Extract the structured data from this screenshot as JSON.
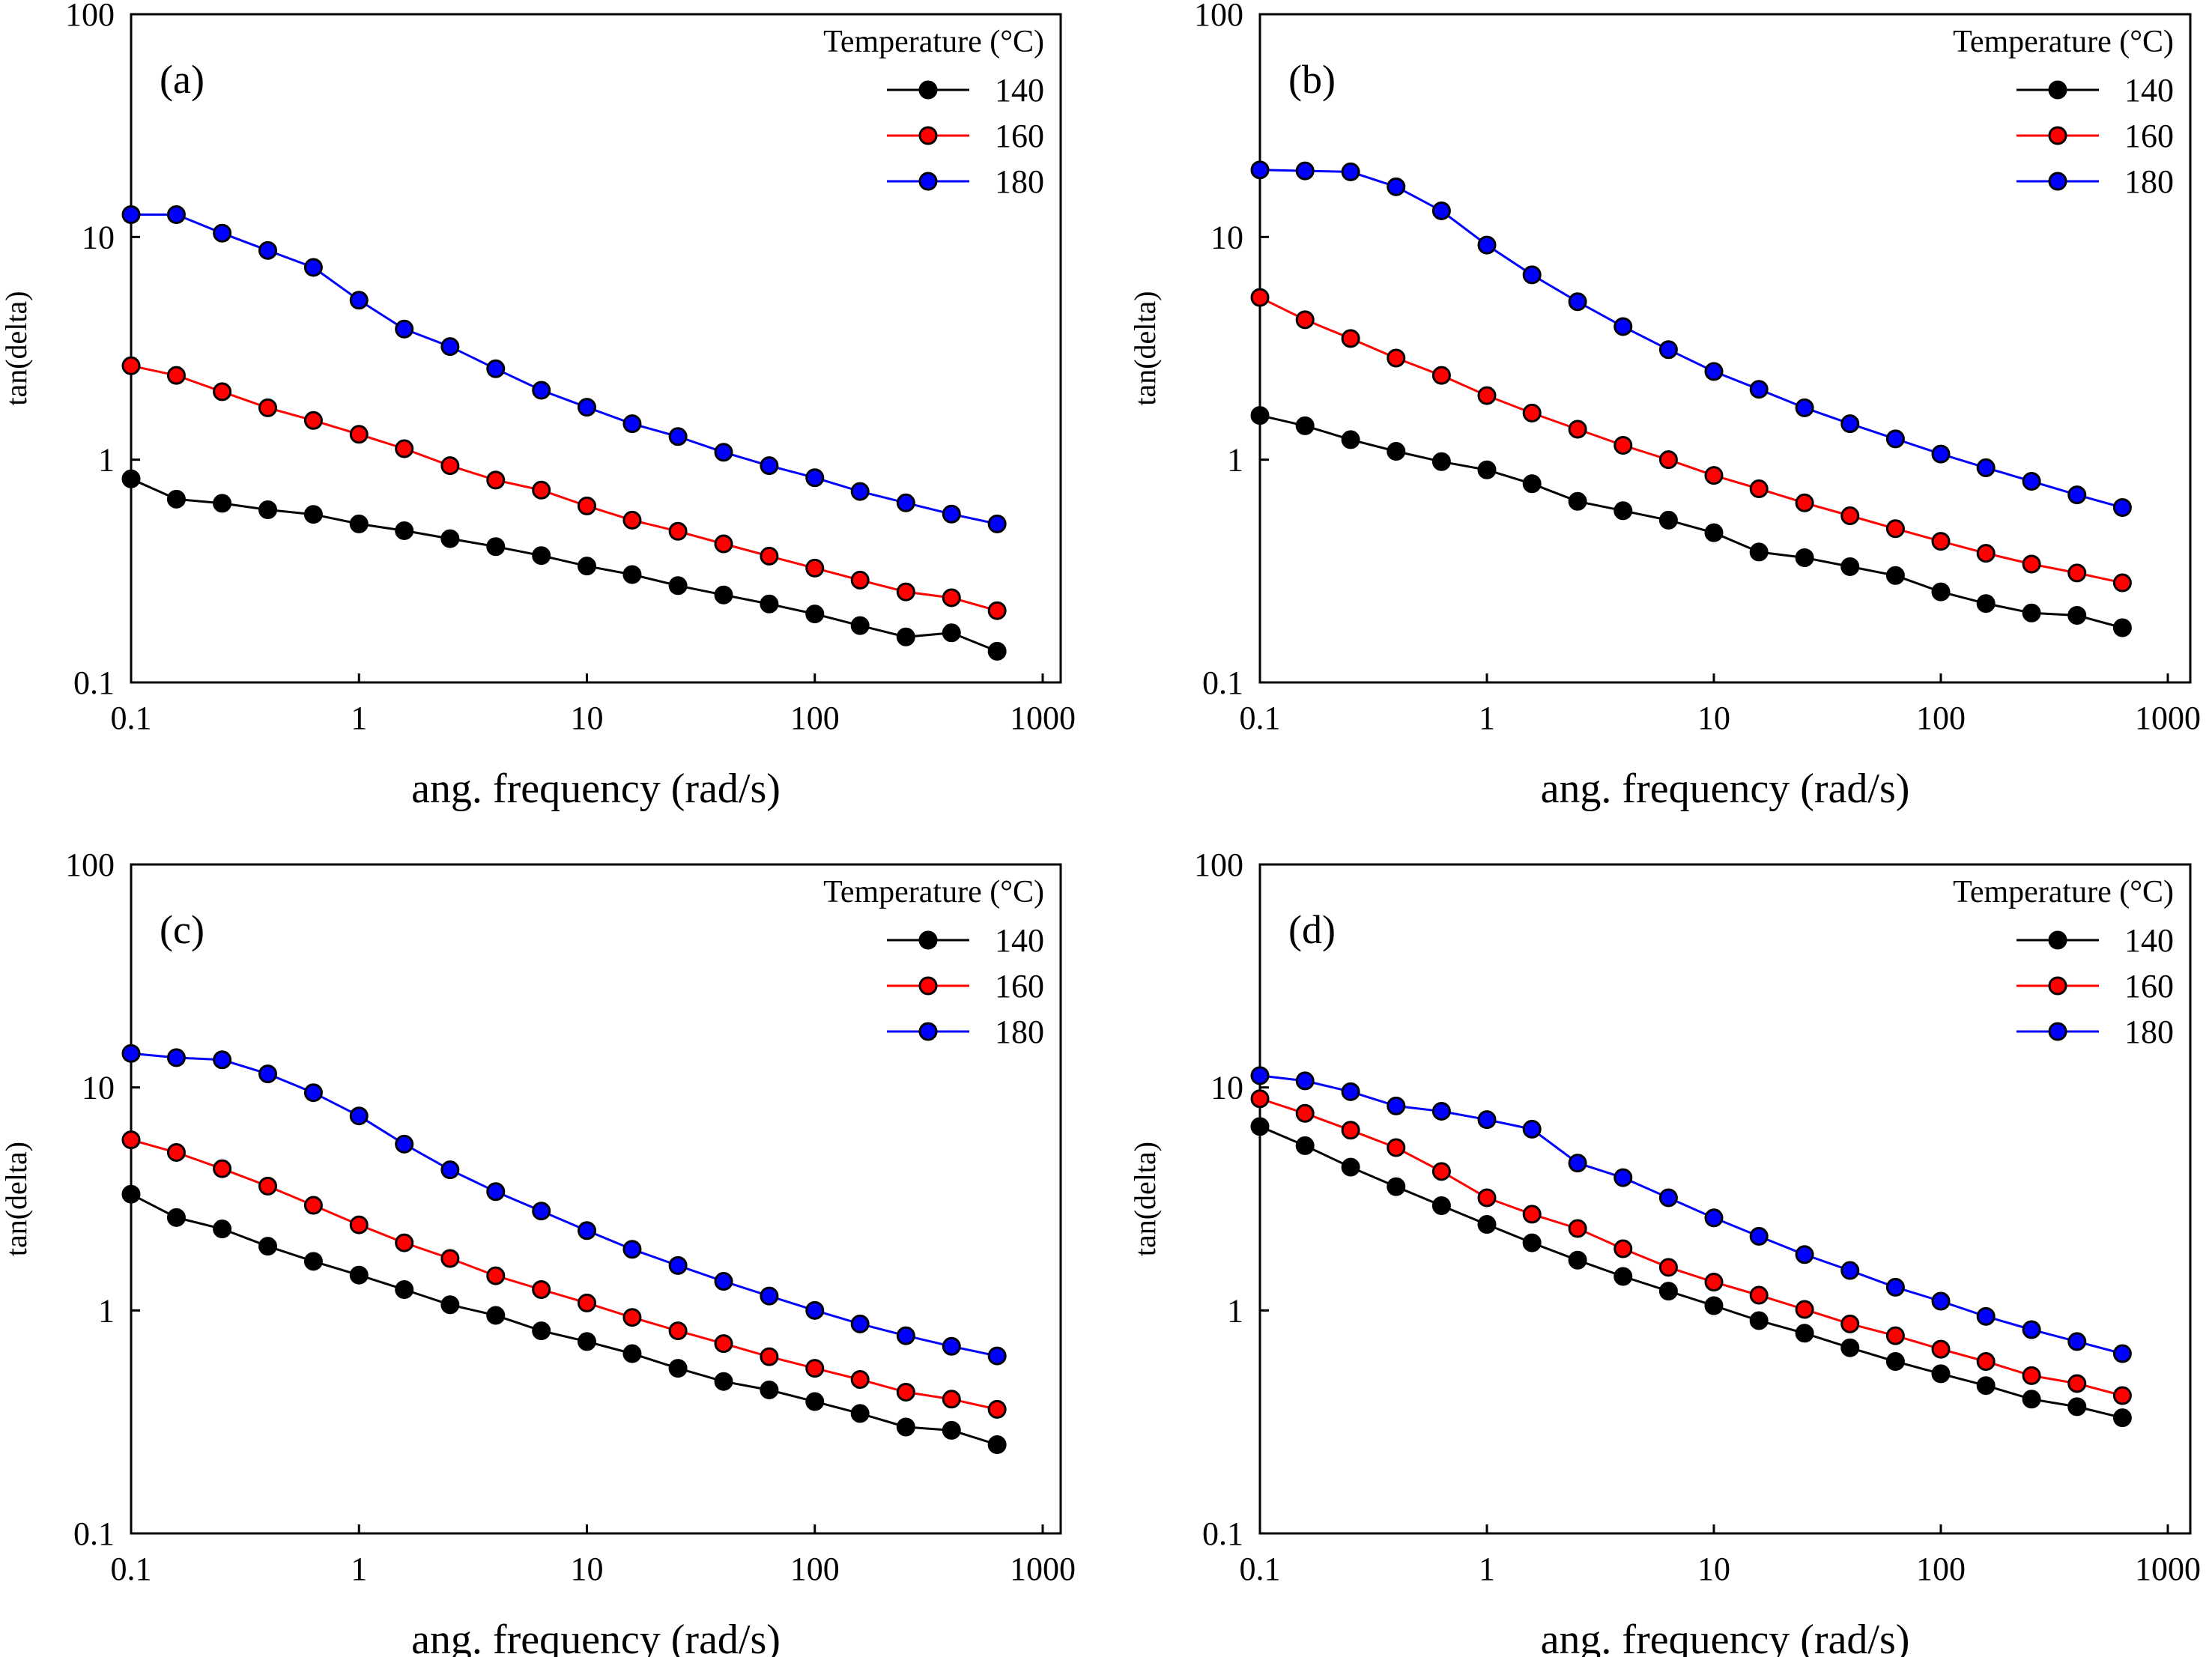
{
  "chart_data": [
    {
      "type": "line",
      "panel_label": "(a)",
      "title": "",
      "xlabel": "ang. frequency (rad/s)",
      "ylabel": "tan(delta)",
      "xscale": "log",
      "yscale": "log",
      "xlim": [
        0.1,
        1000
      ],
      "ylim": [
        0.1,
        100
      ],
      "xticks": [
        "0.1",
        "1",
        "10",
        "100",
        "1000"
      ],
      "yticks": [
        "0.1",
        "1",
        "10",
        "100"
      ],
      "grid": false,
      "legend_title": "Temperature (°C)",
      "legend_position": "top-right",
      "x": [
        0.1,
        0.158,
        0.251,
        0.398,
        0.631,
        1,
        1.58,
        2.51,
        3.98,
        6.31,
        10,
        15.8,
        25.1,
        39.8,
        63.1,
        100,
        158,
        251,
        398,
        631
      ],
      "series": [
        {
          "name": "140",
          "color": "#000000",
          "values": [
            0.82,
            0.665,
            0.637,
            0.596,
            0.568,
            0.515,
            0.48,
            0.442,
            0.407,
            0.371,
            0.333,
            0.305,
            0.272,
            0.247,
            0.225,
            0.203,
            0.18,
            0.16,
            0.167,
            0.138
          ]
        },
        {
          "name": "160",
          "color": "#ff0000",
          "values": [
            2.64,
            2.39,
            2.02,
            1.71,
            1.5,
            1.3,
            1.12,
            0.94,
            0.81,
            0.73,
            0.62,
            0.535,
            0.477,
            0.419,
            0.369,
            0.326,
            0.288,
            0.255,
            0.24,
            0.21
          ]
        },
        {
          "name": "180",
          "color": "#0000ff",
          "values": [
            12.6,
            12.6,
            10.4,
            8.7,
            7.3,
            5.2,
            3.86,
            3.22,
            2.56,
            2.05,
            1.72,
            1.45,
            1.27,
            1.08,
            0.94,
            0.83,
            0.72,
            0.64,
            0.57,
            0.515
          ]
        }
      ]
    },
    {
      "type": "line",
      "panel_label": "(b)",
      "title": "",
      "xlabel": "ang. frequency (rad/s)",
      "ylabel": "tan(delta)",
      "xscale": "log",
      "yscale": "log",
      "xlim": [
        0.1,
        1000
      ],
      "ylim": [
        0.1,
        100
      ],
      "xticks": [
        "0.1",
        "1",
        "10",
        "100",
        "1000"
      ],
      "yticks": [
        "0.1",
        "1",
        "10",
        "100"
      ],
      "grid": false,
      "legend_title": "Temperature (°C)",
      "legend_position": "top-right",
      "x": [
        0.1,
        0.158,
        0.251,
        0.398,
        0.631,
        1,
        1.58,
        2.51,
        3.98,
        6.31,
        10,
        15.8,
        25.1,
        39.8,
        63.1,
        100,
        158,
        251,
        398,
        631
      ],
      "series": [
        {
          "name": "140",
          "color": "#000000",
          "values": [
            1.58,
            1.42,
            1.23,
            1.09,
            0.98,
            0.9,
            0.78,
            0.65,
            0.59,
            0.535,
            0.47,
            0.385,
            0.363,
            0.331,
            0.302,
            0.255,
            0.226,
            0.205,
            0.2,
            0.176
          ]
        },
        {
          "name": "160",
          "color": "#ff0000",
          "values": [
            5.35,
            4.25,
            3.5,
            2.86,
            2.39,
            1.94,
            1.62,
            1.37,
            1.16,
            1.0,
            0.85,
            0.74,
            0.64,
            0.56,
            0.49,
            0.43,
            0.38,
            0.34,
            0.31,
            0.28
          ]
        },
        {
          "name": "180",
          "color": "#0000ff",
          "values": [
            20.0,
            19.8,
            19.6,
            16.8,
            13.1,
            9.2,
            6.76,
            5.12,
            3.96,
            3.12,
            2.49,
            2.07,
            1.71,
            1.45,
            1.24,
            1.06,
            0.92,
            0.8,
            0.695,
            0.61
          ]
        }
      ]
    },
    {
      "type": "line",
      "panel_label": "(c)",
      "title": "",
      "xlabel": "ang. frequency (rad/s)",
      "ylabel": "tan(delta)",
      "xscale": "log",
      "yscale": "log",
      "xlim": [
        0.1,
        1000
      ],
      "ylim": [
        0.1,
        100
      ],
      "xticks": [
        "0.1",
        "1",
        "10",
        "100",
        "1000"
      ],
      "yticks": [
        "0.1",
        "1",
        "10",
        "100"
      ],
      "grid": false,
      "legend_title": "Temperature (°C)",
      "legend_position": "top-right",
      "x": [
        0.1,
        0.158,
        0.251,
        0.398,
        0.631,
        1,
        1.58,
        2.51,
        3.98,
        6.31,
        10,
        15.8,
        25.1,
        39.8,
        63.1,
        100,
        158,
        251,
        398,
        631
      ],
      "series": [
        {
          "name": "140",
          "color": "#000000",
          "values": [
            3.32,
            2.61,
            2.32,
            1.94,
            1.66,
            1.44,
            1.24,
            1.06,
            0.95,
            0.81,
            0.725,
            0.64,
            0.55,
            0.48,
            0.44,
            0.39,
            0.345,
            0.3,
            0.29,
            0.25
          ]
        },
        {
          "name": "160",
          "color": "#ff0000",
          "values": [
            5.82,
            5.11,
            4.32,
            3.61,
            2.96,
            2.42,
            2.01,
            1.71,
            1.43,
            1.24,
            1.08,
            0.93,
            0.81,
            0.71,
            0.62,
            0.55,
            0.49,
            0.43,
            0.4,
            0.36
          ]
        },
        {
          "name": "180",
          "color": "#0000ff",
          "values": [
            14.2,
            13.6,
            13.3,
            11.5,
            9.47,
            7.45,
            5.57,
            4.27,
            3.41,
            2.79,
            2.28,
            1.88,
            1.59,
            1.35,
            1.16,
            1.0,
            0.87,
            0.77,
            0.69,
            0.625
          ]
        }
      ]
    },
    {
      "type": "line",
      "panel_label": "(d)",
      "title": "",
      "xlabel": "ang. frequency (rad/s)",
      "ylabel": "tan(delta)",
      "xscale": "log",
      "yscale": "log",
      "xlim": [
        0.1,
        1000
      ],
      "ylim": [
        0.1,
        100
      ],
      "xticks": [
        "0.1",
        "1",
        "10",
        "100",
        "1000"
      ],
      "yticks": [
        "0.1",
        "1",
        "10",
        "100"
      ],
      "grid": false,
      "legend_title": "Temperature (°C)",
      "legend_position": "top-right",
      "x": [
        0.1,
        0.158,
        0.251,
        0.398,
        0.631,
        1,
        1.58,
        2.51,
        3.98,
        6.31,
        10,
        15.8,
        25.1,
        39.8,
        63.1,
        100,
        158,
        251,
        398,
        631
      ],
      "series": [
        {
          "name": "140",
          "color": "#000000",
          "values": [
            6.68,
            5.48,
            4.39,
            3.59,
            2.95,
            2.43,
            2.01,
            1.68,
            1.42,
            1.22,
            1.05,
            0.9,
            0.79,
            0.68,
            0.59,
            0.52,
            0.46,
            0.4,
            0.37,
            0.33
          ]
        },
        {
          "name": "160",
          "color": "#ff0000",
          "values": [
            8.9,
            7.65,
            6.43,
            5.37,
            4.2,
            3.2,
            2.7,
            2.33,
            1.89,
            1.56,
            1.34,
            1.17,
            1.01,
            0.87,
            0.77,
            0.67,
            0.59,
            0.51,
            0.47,
            0.415
          ]
        },
        {
          "name": "180",
          "color": "#0000ff",
          "values": [
            11.3,
            10.7,
            9.57,
            8.26,
            7.82,
            7.17,
            6.5,
            4.58,
            3.94,
            3.2,
            2.6,
            2.15,
            1.78,
            1.51,
            1.27,
            1.1,
            0.94,
            0.82,
            0.725,
            0.64
          ]
        }
      ]
    }
  ]
}
